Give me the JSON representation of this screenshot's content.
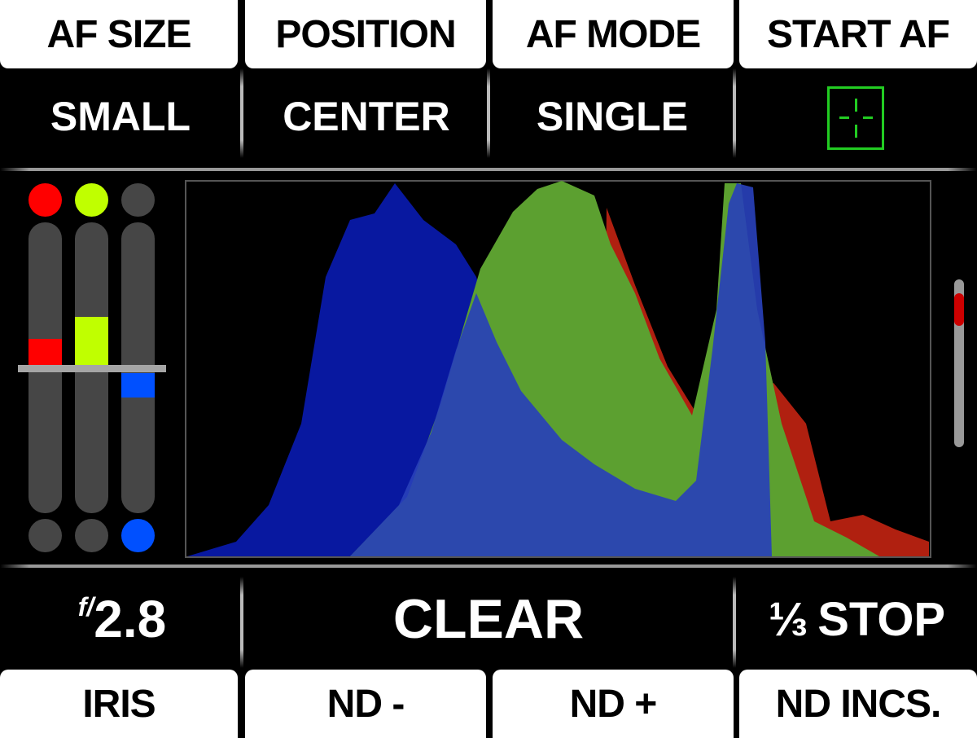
{
  "top_buttons": [
    {
      "label": "AF SIZE"
    },
    {
      "label": "POSITION"
    },
    {
      "label": "AF MODE"
    },
    {
      "label": "START AF"
    }
  ],
  "top_values": {
    "af_size": "SMALL",
    "position": "CENTER",
    "af_mode": "SINGLE",
    "start_af_icon": "af-target-icon"
  },
  "rgb_levels": {
    "red": {
      "color": "#ff0000",
      "offset": "positive"
    },
    "green": {
      "color": "#c0ff00",
      "offset": "positive"
    },
    "blue": {
      "color": "#0050ff",
      "offset": "negative"
    }
  },
  "histogram": {
    "channels": [
      "red",
      "green",
      "blue"
    ]
  },
  "scrollbar": {
    "thumb_color": "#cc0000"
  },
  "bottom_values": {
    "iris_prefix": "f/",
    "iris": "2.8",
    "nd": "CLEAR",
    "nd_inc_fraction": "⅓",
    "nd_inc": "STOP"
  },
  "bottom_buttons": [
    {
      "label": "IRIS"
    },
    {
      "label": "ND -"
    },
    {
      "label": "ND +"
    },
    {
      "label": "ND INCS."
    }
  ],
  "colors": {
    "af_green": "#22cc22"
  }
}
